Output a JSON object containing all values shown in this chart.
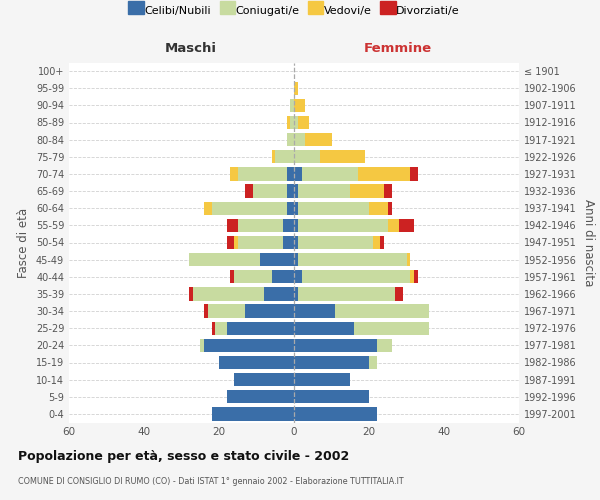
{
  "age_groups": [
    "0-4",
    "5-9",
    "10-14",
    "15-19",
    "20-24",
    "25-29",
    "30-34",
    "35-39",
    "40-44",
    "45-49",
    "50-54",
    "55-59",
    "60-64",
    "65-69",
    "70-74",
    "75-79",
    "80-84",
    "85-89",
    "90-94",
    "95-99",
    "100+"
  ],
  "birth_years": [
    "1997-2001",
    "1992-1996",
    "1987-1991",
    "1982-1986",
    "1977-1981",
    "1972-1976",
    "1967-1971",
    "1962-1966",
    "1957-1961",
    "1952-1956",
    "1947-1951",
    "1942-1946",
    "1937-1941",
    "1932-1936",
    "1927-1931",
    "1922-1926",
    "1917-1921",
    "1912-1916",
    "1907-1911",
    "1902-1906",
    "≤ 1901"
  ],
  "males": {
    "celibi": [
      22,
      18,
      16,
      20,
      24,
      18,
      13,
      8,
      6,
      9,
      3,
      3,
      2,
      2,
      2,
      0,
      0,
      0,
      0,
      0,
      0
    ],
    "coniugati": [
      0,
      0,
      0,
      0,
      1,
      3,
      10,
      19,
      10,
      19,
      12,
      12,
      20,
      9,
      13,
      5,
      2,
      1,
      1,
      0,
      0
    ],
    "vedovi": [
      0,
      0,
      0,
      0,
      0,
      0,
      0,
      0,
      0,
      0,
      1,
      0,
      2,
      0,
      2,
      1,
      0,
      1,
      0,
      0,
      0
    ],
    "divorziati": [
      0,
      0,
      0,
      0,
      0,
      1,
      1,
      1,
      1,
      0,
      2,
      3,
      0,
      2,
      0,
      0,
      0,
      0,
      0,
      0,
      0
    ]
  },
  "females": {
    "nubili": [
      22,
      20,
      15,
      20,
      22,
      16,
      11,
      1,
      2,
      1,
      1,
      1,
      1,
      1,
      2,
      0,
      0,
      0,
      0,
      0,
      0
    ],
    "coniugate": [
      0,
      0,
      0,
      2,
      4,
      20,
      25,
      26,
      29,
      29,
      20,
      24,
      19,
      14,
      15,
      7,
      3,
      1,
      0,
      0,
      0
    ],
    "vedove": [
      0,
      0,
      0,
      0,
      0,
      0,
      0,
      0,
      1,
      1,
      2,
      3,
      5,
      9,
      14,
      12,
      7,
      3,
      3,
      1,
      0
    ],
    "divorziate": [
      0,
      0,
      0,
      0,
      0,
      0,
      0,
      2,
      1,
      0,
      1,
      4,
      1,
      2,
      2,
      0,
      0,
      0,
      0,
      0,
      0
    ]
  },
  "colors": {
    "celibi_nubili": "#3a6ea8",
    "coniugati": "#c8dba0",
    "vedovi": "#f5c842",
    "divorziati": "#cc2222"
  },
  "xlim": 60,
  "title": "Popolazione per età, sesso e stato civile - 2002",
  "subtitle": "COMUNE DI CONSIGLIO DI RUMO (CO) - Dati ISTAT 1° gennaio 2002 - Elaborazione TUTTITALIA.IT",
  "xlabel_left": "Maschi",
  "xlabel_right": "Femmine",
  "ylabel_left": "Fasce di età",
  "ylabel_right": "Anni di nascita",
  "bg_color": "#f5f5f5",
  "plot_bg": "#ffffff"
}
